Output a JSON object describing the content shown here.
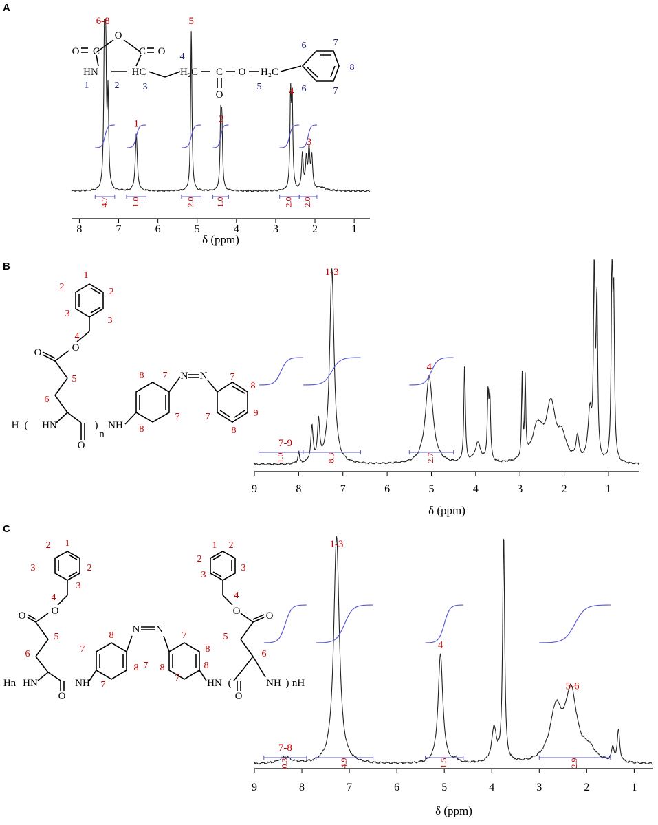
{
  "figure": {
    "panels": [
      {
        "letter": "A"
      },
      {
        "letter": "B"
      },
      {
        "letter": "C"
      }
    ]
  },
  "colors": {
    "spectrum": "#222222",
    "integral": "#5b5bd6",
    "label": "#cc0000",
    "structure_number_blue": "#1a237e"
  },
  "chart_data": [
    {
      "type": "line",
      "panel": "A",
      "xlabel": "δ (ppm)",
      "ylabel": "",
      "xlim": [
        8.2,
        0.6
      ],
      "xaxis_reversed": true,
      "xticks": [
        8,
        7,
        6,
        5,
        4,
        3,
        2,
        1
      ],
      "xtick_labels": [
        "8",
        "7",
        "6",
        "5",
        "4",
        "3",
        "2",
        "1"
      ],
      "peaks": [
        {
          "shift": 7.36,
          "height": 0.98,
          "width": 0.02
        },
        {
          "shift": 7.33,
          "height": 0.78,
          "width": 0.02
        },
        {
          "shift": 7.27,
          "height": 0.55,
          "width": 0.02
        },
        {
          "shift": 6.55,
          "height": 0.35,
          "width": 0.03
        },
        {
          "shift": 5.15,
          "height": 0.98,
          "width": 0.02
        },
        {
          "shift": 4.4,
          "height": 0.4,
          "width": 0.02
        },
        {
          "shift": 4.37,
          "height": 0.38,
          "width": 0.02
        },
        {
          "shift": 2.62,
          "height": 0.55,
          "width": 0.02
        },
        {
          "shift": 2.58,
          "height": 0.52,
          "width": 0.02
        },
        {
          "shift": 2.32,
          "height": 0.22,
          "width": 0.025
        },
        {
          "shift": 2.22,
          "height": 0.18,
          "width": 0.025
        },
        {
          "shift": 2.15,
          "height": 0.24,
          "width": 0.025
        },
        {
          "shift": 2.08,
          "height": 0.2,
          "width": 0.025
        },
        {
          "shift": 1.85,
          "height": 0.02,
          "width": 0.15
        }
      ],
      "peak_labels": [
        {
          "text": "6-8",
          "shift": 7.4
        },
        {
          "text": "1",
          "shift": 6.55
        },
        {
          "text": "5",
          "shift": 5.15
        },
        {
          "text": "2",
          "shift": 4.38
        },
        {
          "text": "4",
          "shift": 2.6
        },
        {
          "text": "3",
          "shift": 2.15
        }
      ],
      "integrals": [
        {
          "value": "4.7",
          "from": 7.6,
          "to": 7.1
        },
        {
          "value": "1.0",
          "from": 6.8,
          "to": 6.3
        },
        {
          "value": "2.0",
          "from": 5.4,
          "to": 4.9
        },
        {
          "value": "1.0",
          "from": 4.6,
          "to": 4.2
        },
        {
          "value": "2.0",
          "from": 2.9,
          "to": 2.4
        },
        {
          "value": "2.0",
          "from": 2.4,
          "to": 1.95
        }
      ],
      "structure_labels_red": [
        "6-8"
      ],
      "structure_numbers": [
        "1",
        "2",
        "3",
        "4",
        "5",
        "6",
        "6",
        "7",
        "7",
        "8"
      ]
    },
    {
      "type": "line",
      "panel": "B",
      "xlabel": "δ (ppm)",
      "ylabel": "",
      "xlim": [
        9,
        0.3
      ],
      "xaxis_reversed": true,
      "xticks": [
        9,
        8,
        7,
        6,
        5,
        4,
        3,
        2,
        1
      ],
      "xtick_labels": [
        "9",
        "8",
        "7",
        "6",
        "5",
        "4",
        "3",
        "2",
        "1"
      ],
      "peaks": [
        {
          "shift": 8.0,
          "height": 0.06,
          "width": 0.02
        },
        {
          "shift": 7.7,
          "height": 0.18,
          "width": 0.03
        },
        {
          "shift": 7.55,
          "height": 0.2,
          "width": 0.03
        },
        {
          "shift": 7.25,
          "height": 1.0,
          "width": 0.06
        },
        {
          "shift": 5.05,
          "height": 0.45,
          "width": 0.1
        },
        {
          "shift": 4.25,
          "height": 0.5,
          "width": 0.02
        },
        {
          "shift": 3.95,
          "height": 0.1,
          "width": 0.08
        },
        {
          "shift": 3.72,
          "height": 0.33,
          "width": 0.02
        },
        {
          "shift": 3.68,
          "height": 0.3,
          "width": 0.02
        },
        {
          "shift": 2.95,
          "height": 0.42,
          "width": 0.015
        },
        {
          "shift": 2.88,
          "height": 0.4,
          "width": 0.015
        },
        {
          "shift": 2.6,
          "height": 0.18,
          "width": 0.15
        },
        {
          "shift": 2.3,
          "height": 0.28,
          "width": 0.12
        },
        {
          "shift": 2.05,
          "height": 0.12,
          "width": 0.12
        },
        {
          "shift": 1.7,
          "height": 0.12,
          "width": 0.04
        },
        {
          "shift": 1.42,
          "height": 0.25,
          "width": 0.05
        },
        {
          "shift": 1.32,
          "height": 1.0,
          "width": 0.02
        },
        {
          "shift": 1.26,
          "height": 0.8,
          "width": 0.02
        },
        {
          "shift": 0.92,
          "height": 1.0,
          "width": 0.02
        },
        {
          "shift": 0.88,
          "height": 0.75,
          "width": 0.02
        }
      ],
      "peak_labels": [
        {
          "text": "1-3",
          "shift": 7.25
        },
        {
          "text": "7-9",
          "shift": 8.3
        },
        {
          "text": "4",
          "shift": 5.05
        }
      ],
      "integrals": [
        {
          "value": "1.0",
          "from": 8.9,
          "to": 7.9
        },
        {
          "value": "8.3",
          "from": 7.9,
          "to": 6.6
        },
        {
          "value": "2.7",
          "from": 5.5,
          "to": 4.5
        }
      ],
      "structure_numbers": [
        "1",
        "2",
        "2",
        "3",
        "3",
        "4",
        "5",
        "6",
        "7",
        "7",
        "7",
        "7",
        "8",
        "8",
        "8",
        "8",
        "9"
      ],
      "structure_atoms": [
        "O",
        "O",
        "H",
        "HN",
        "NH",
        "N",
        "N",
        "n",
        "O"
      ]
    },
    {
      "type": "line",
      "panel": "C",
      "xlabel": "δ (ppm)",
      "ylabel": "",
      "xlim": [
        9,
        0.6
      ],
      "xaxis_reversed": true,
      "xticks": [
        9,
        8,
        7,
        6,
        5,
        4,
        3,
        2,
        1
      ],
      "xtick_labels": [
        "9",
        "8",
        "7",
        "6",
        "5",
        "4",
        "3",
        "2",
        "1"
      ],
      "peaks": [
        {
          "shift": 8.35,
          "height": 0.03,
          "width": 0.15
        },
        {
          "shift": 7.27,
          "height": 1.0,
          "width": 0.07
        },
        {
          "shift": 5.08,
          "height": 0.48,
          "width": 0.06
        },
        {
          "shift": 4.75,
          "height": 0.02,
          "width": 0.03
        },
        {
          "shift": 3.95,
          "height": 0.15,
          "width": 0.06
        },
        {
          "shift": 3.75,
          "height": 1.0,
          "width": 0.025
        },
        {
          "shift": 2.65,
          "height": 0.22,
          "width": 0.15
        },
        {
          "shift": 2.33,
          "height": 0.3,
          "width": 0.15
        },
        {
          "shift": 1.95,
          "height": 0.05,
          "width": 0.15
        },
        {
          "shift": 1.45,
          "height": 0.06,
          "width": 0.03
        },
        {
          "shift": 1.33,
          "height": 0.14,
          "width": 0.03
        }
      ],
      "peak_labels": [
        {
          "text": "1-3",
          "shift": 7.27
        },
        {
          "text": "7-8",
          "shift": 8.35
        },
        {
          "text": "4",
          "shift": 5.08
        },
        {
          "text": "5-6",
          "shift": 2.3
        }
      ],
      "integrals": [
        {
          "value": "0.3",
          "from": 8.8,
          "to": 7.9
        },
        {
          "value": "4.9",
          "from": 7.7,
          "to": 6.5
        },
        {
          "value": "1.5",
          "from": 5.4,
          "to": 4.6
        },
        {
          "value": "2.9",
          "from": 3.0,
          "to": 1.5
        }
      ],
      "structure_numbers": [
        "1",
        "2",
        "2",
        "3",
        "3",
        "4",
        "5",
        "6",
        "7",
        "7",
        "7",
        "8",
        "8",
        "8",
        "1",
        "2",
        "2",
        "3",
        "3",
        "4",
        "5",
        "6",
        "7",
        "7",
        "8",
        "8"
      ],
      "structure_atoms": [
        "O",
        "O",
        "Hn",
        "HN",
        "NH",
        "O",
        "N",
        "N",
        "O",
        "O",
        "HN",
        "NH",
        "nH",
        "O"
      ]
    }
  ]
}
